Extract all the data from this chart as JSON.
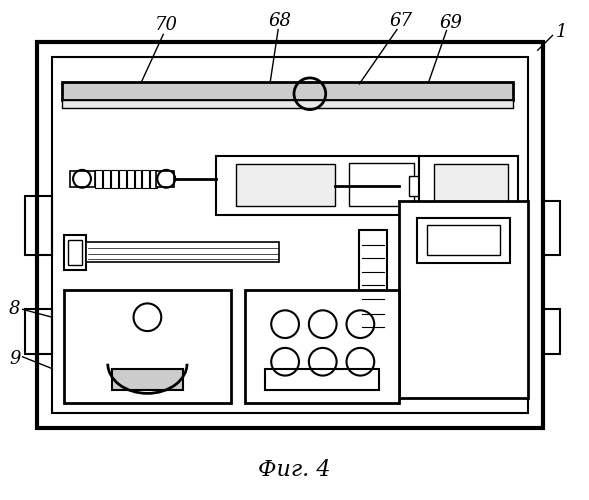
{
  "title": "Фиг. 4",
  "title_fontsize": 16,
  "bg_color": "#ffffff",
  "line_color": "#000000",
  "fig_width": 5.89,
  "fig_height": 5.0,
  "dpi": 100
}
